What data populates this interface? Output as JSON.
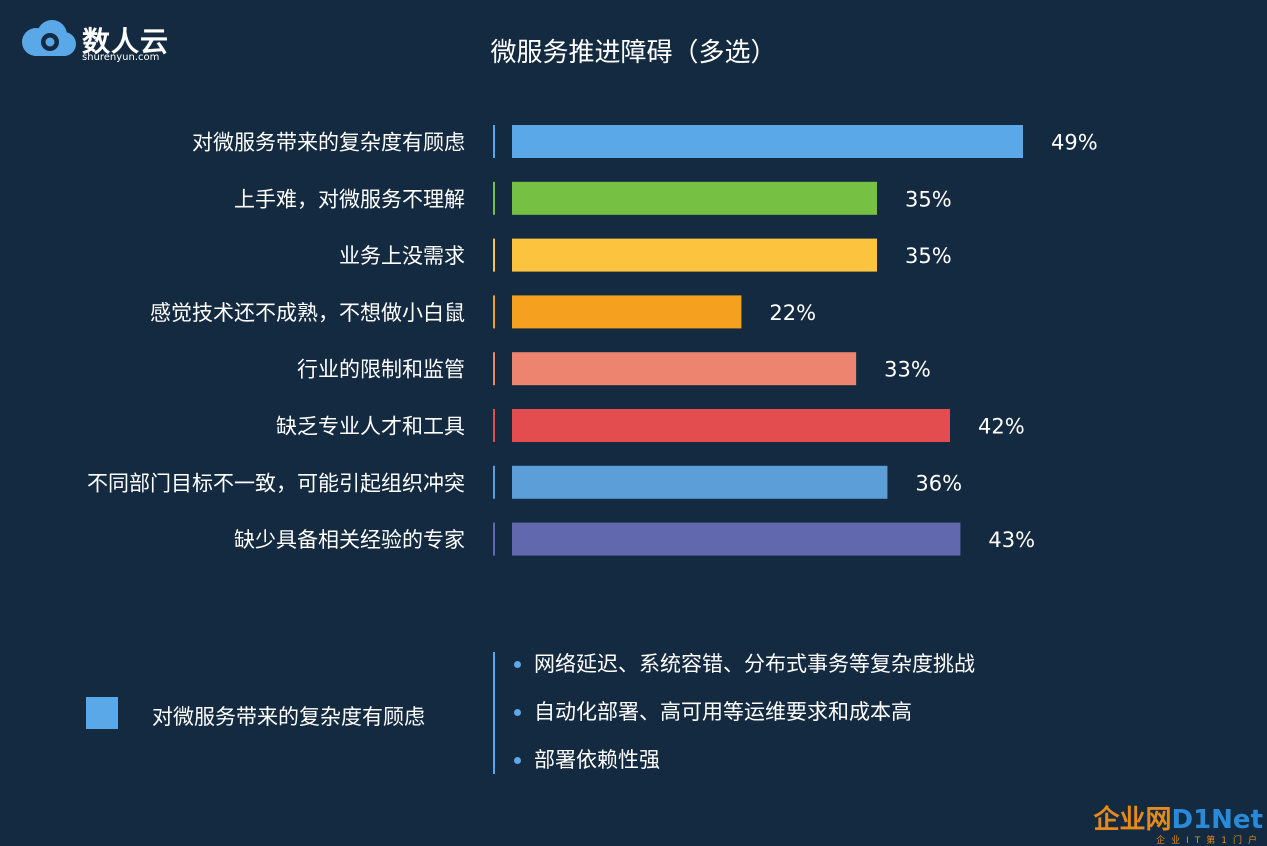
{
  "brand": {
    "name": "数人云",
    "domain": "shurenyun.com"
  },
  "chart_data": {
    "type": "bar",
    "orientation": "horizontal",
    "title": "微服务推进障碍（多选）",
    "categories": [
      "对微服务带来的复杂度有顾虑",
      "上手难，对微服务不理解",
      "业务上没需求",
      "感觉技术还不成熟，不想做小白鼠",
      "行业的限制和监管",
      "缺乏专业人才和工具",
      "不同部门目标不一致，可能引起组织冲突",
      "缺少具备相关经验的专家"
    ],
    "values": [
      49,
      35,
      35,
      22,
      33,
      42,
      36,
      43
    ],
    "value_labels": [
      "49%",
      "35%",
      "35%",
      "22%",
      "33%",
      "42%",
      "36%",
      "43%"
    ],
    "colors": [
      "#5aa8e8",
      "#76c043",
      "#fcc43e",
      "#f5a01e",
      "#ec8470",
      "#e44d50",
      "#5b9ed8",
      "#6268ad"
    ],
    "xlim": [
      0,
      49
    ],
    "grid": false,
    "legend": "none"
  },
  "legend": {
    "color": "#5aa8e8",
    "label": "对微服务带来的复杂度有顾虑"
  },
  "details": [
    "网络延迟、系统容错、分布式事务等复杂度挑战",
    "自动化部署、高可用等运维要求和成本高",
    "部署依赖性强"
  ],
  "watermark": {
    "cn": "企业网",
    "en": "D1Net",
    "sub": "企业IT第1门户"
  }
}
